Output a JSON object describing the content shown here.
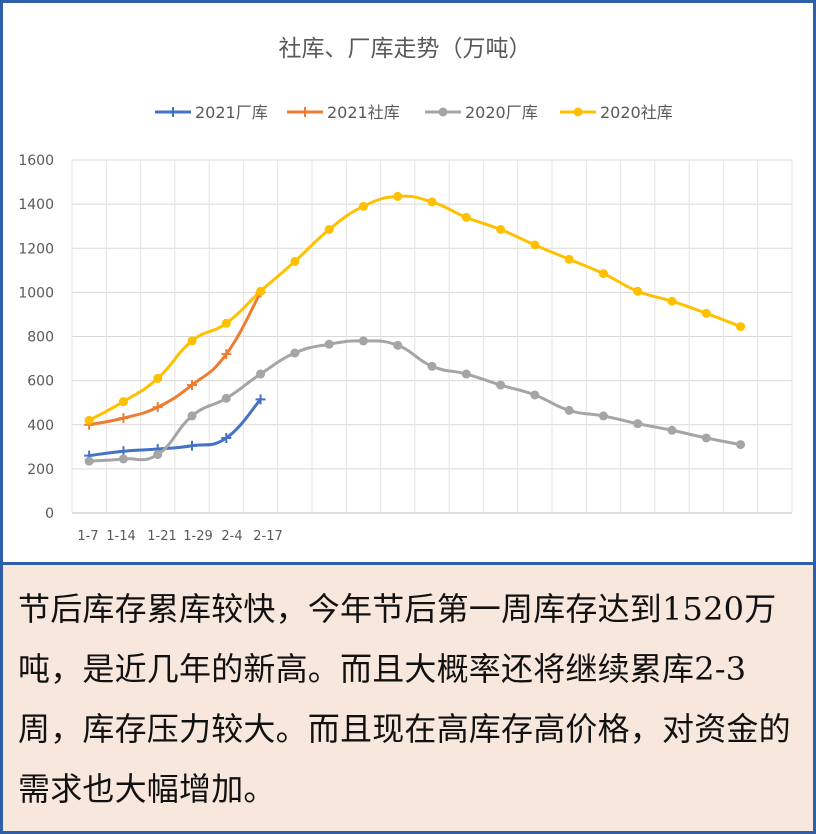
{
  "chart_data": {
    "type": "line",
    "title": "社库、厂库走势（万吨）",
    "categories": [
      "1-7",
      "1-14",
      "1-21",
      "1-29",
      "2-4",
      "2-17",
      "",
      "",
      "",
      "",
      "",
      "",
      "",
      "",
      "",
      "",
      "",
      "",
      "",
      "",
      ""
    ],
    "x_tick_labels": [
      "1-7",
      "1-14",
      "1-21",
      "1-29",
      "2-4",
      "2-17"
    ],
    "ylim": [
      0,
      1600
    ],
    "yticks": [
      0,
      200,
      400,
      600,
      800,
      1000,
      1200,
      1400,
      1600
    ],
    "grid": "on",
    "legend_position": "top",
    "series": [
      {
        "name": "2021厂库",
        "color": "#4472c4",
        "marker": "plus",
        "values": [
          260,
          280,
          290,
          305,
          340,
          515,
          null,
          null,
          null,
          null,
          null,
          null,
          null,
          null,
          null,
          null,
          null,
          null,
          null,
          null,
          null
        ]
      },
      {
        "name": "2021社库",
        "color": "#ed7d31",
        "marker": "plus",
        "values": [
          400,
          430,
          480,
          580,
          720,
          1000,
          null,
          null,
          null,
          null,
          null,
          null,
          null,
          null,
          null,
          null,
          null,
          null,
          null,
          null,
          null
        ]
      },
      {
        "name": "2020厂库",
        "color": "#a5a5a5",
        "marker": "circle",
        "values": [
          235,
          245,
          265,
          440,
          520,
          630,
          725,
          765,
          780,
          760,
          665,
          630,
          580,
          535,
          465,
          440,
          405,
          375,
          340,
          310,
          null
        ]
      },
      {
        "name": "2020社库",
        "color": "#ffc000",
        "marker": "circle",
        "values": [
          420,
          505,
          610,
          780,
          860,
          1005,
          1140,
          1285,
          1390,
          1435,
          1410,
          1340,
          1285,
          1215,
          1150,
          1085,
          1005,
          960,
          905,
          845,
          null
        ]
      }
    ]
  },
  "paragraph": "节后库存累库较快，今年节后第一周库存达到1520万吨，是近几年的新高。而且大概率还将继续累库2-3周，库存压力较大。而且现在高库存高价格，对资金的需求也大幅增加。"
}
